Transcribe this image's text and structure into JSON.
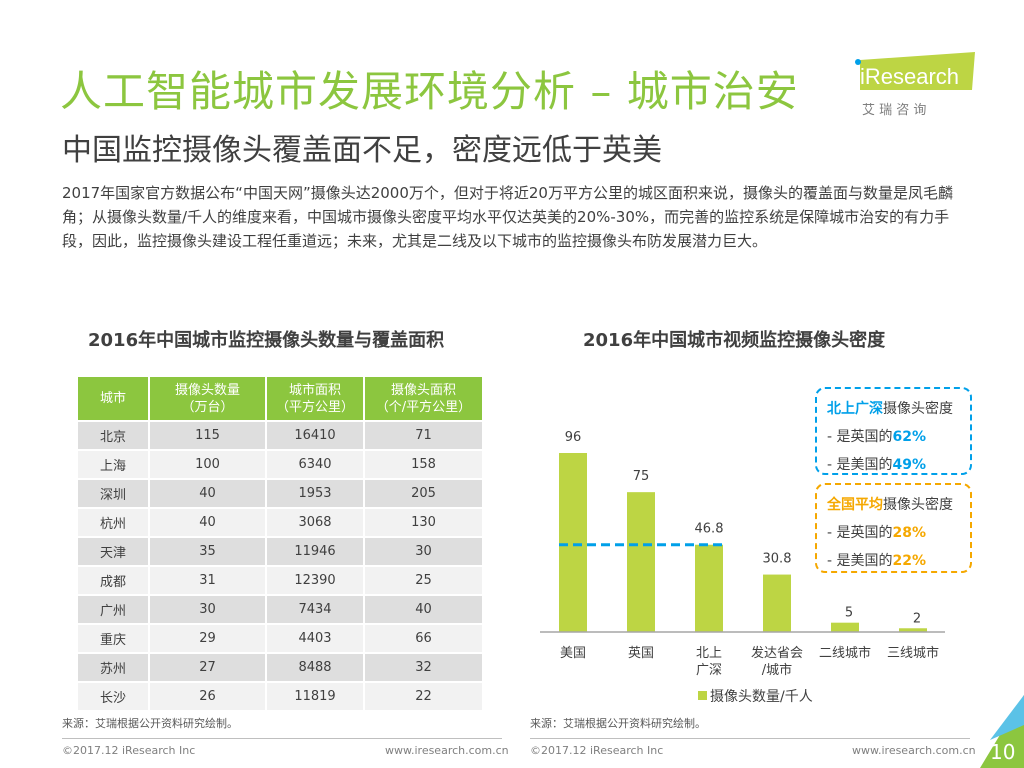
{
  "title": "人工智能城市发展环境分析 – 城市治安",
  "subtitle": "中国监控摄像头覆盖面不足，密度远低于英美",
  "body": "2017年国家官方数据公布“中国天网”摄像头达2000万个，但对于将近20万平方公里的城区面积来说，摄像头的覆盖面与数量是凤毛麟角；从摄像头数量/千人的维度来看，中国城市摄像头密度平均水平仅达英美的20%-30%，而完善的监控系统是保障城市治安的有力手段，因此，监控摄像头建设工程任重道远；未来，尤其是二线及以下城市的监控摄像头布防发展潜力巨大。",
  "logo": {
    "brand": "iResearch",
    "sub": "艾 瑞 咨 询"
  },
  "colors": {
    "green": "#8cc63f",
    "bar": "#bdd544",
    "blue": "#00a0e9",
    "orange": "#f5a800"
  },
  "table_title": "2016年中国城市监控摄像头数量与覆盖面积",
  "table": {
    "headers": [
      [
        "城市",
        ""
      ],
      [
        "摄像头数量",
        "（万台）"
      ],
      [
        "城市面积",
        "（平方公里）"
      ],
      [
        "摄像头面积",
        "（个/平方公里）"
      ]
    ],
    "rows": [
      [
        "北京",
        "115",
        "16410",
        "71"
      ],
      [
        "上海",
        "100",
        "6340",
        "158"
      ],
      [
        "深圳",
        "40",
        "1953",
        "205"
      ],
      [
        "杭州",
        "40",
        "3068",
        "130"
      ],
      [
        "天津",
        "35",
        "11946",
        "30"
      ],
      [
        "成都",
        "31",
        "12390",
        "25"
      ],
      [
        "广州",
        "30",
        "7434",
        "40"
      ],
      [
        "重庆",
        "29",
        "4403",
        "66"
      ],
      [
        "苏州",
        "27",
        "8488",
        "32"
      ],
      [
        "长沙",
        "26",
        "11819",
        "22"
      ]
    ]
  },
  "chart_data": {
    "type": "bar",
    "title": "2016年中国城市视频监控摄像头密度",
    "categories": [
      "美国",
      "英国",
      "北上\n广深",
      "发达省会\n/城市",
      "二线城市",
      "三线城市"
    ],
    "series": [
      {
        "name": "摄像头数量/千人",
        "values": [
          96,
          75,
          46.8,
          30.8,
          5,
          2
        ]
      }
    ],
    "value_labels": [
      "96",
      "75",
      "46.8",
      "30.8",
      "5",
      "2"
    ],
    "reference_line": {
      "value": 46.8,
      "style": "dashed",
      "color": "#00a0e9"
    },
    "legend": "bottom",
    "ylim": [
      0,
      100
    ]
  },
  "callouts": [
    {
      "head": "北上广深",
      "tail": "摄像头密度",
      "lines": [
        [
          "- 是英国的",
          "62%"
        ],
        [
          "- 是美国的",
          "49%"
        ]
      ]
    },
    {
      "head": "全国平均",
      "tail": "摄像头密度",
      "lines": [
        [
          "- 是英国的",
          "28%"
        ],
        [
          "- 是美国的",
          "22%"
        ]
      ]
    }
  ],
  "source": "来源：艾瑞根据公开资料研究绘制。",
  "footer": {
    "copyright": "©2017.12 iResearch Inc",
    "url": "www.iresearch.com.cn",
    "page": "10"
  }
}
